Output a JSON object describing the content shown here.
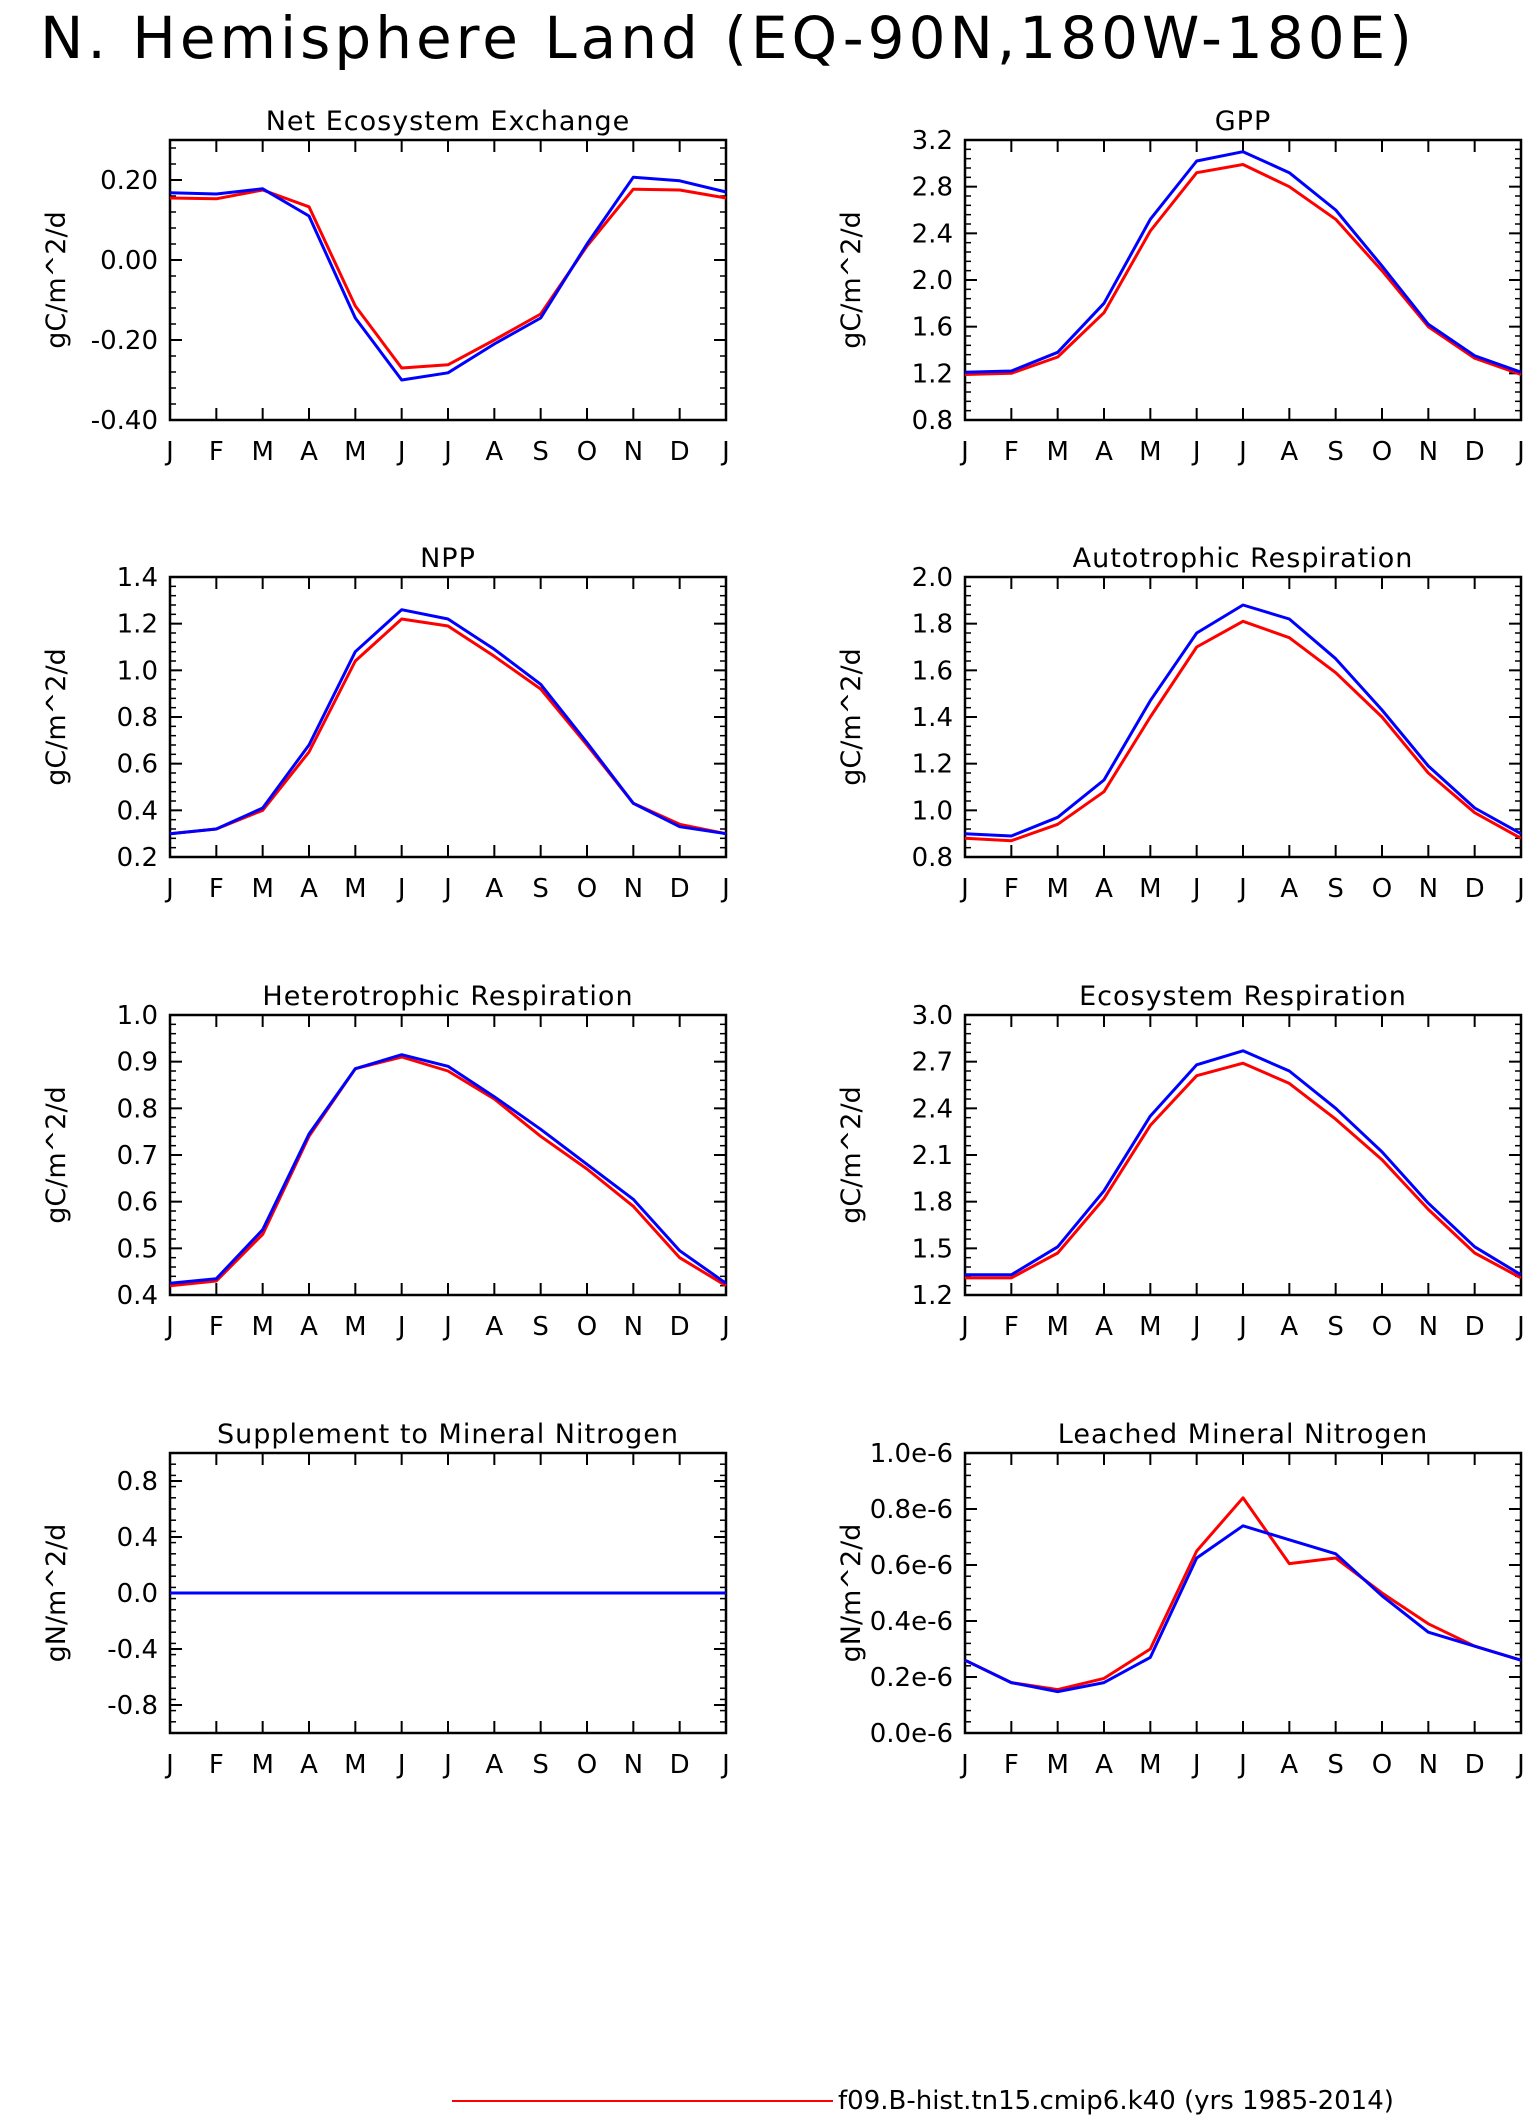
{
  "page": {
    "title": "N. Hemisphere Land (EQ-90N,180W-180E)"
  },
  "legend": {
    "label": "f09.B-hist.tn15.cmip6.k40 (yrs 1985-2014)",
    "color": "#ff0000"
  },
  "series_colors": {
    "red": "#ff0000",
    "blue": "#0000ff"
  },
  "chart_data": [
    {
      "type": "line",
      "title": "Net Ecosystem Exchange",
      "ylabel": "gC/m^2/d",
      "categories": [
        "J",
        "F",
        "M",
        "A",
        "M",
        "J",
        "J",
        "A",
        "S",
        "O",
        "N",
        "D",
        "J"
      ],
      "ylim": [
        -0.4,
        0.3
      ],
      "yticks": [
        -0.4,
        -0.2,
        0.0,
        0.2
      ],
      "ytick_labels": [
        "-0.40",
        "-0.20",
        "0.00",
        "0.20"
      ],
      "series": [
        {
          "color": "#ff0000",
          "values": [
            0.155,
            0.153,
            0.175,
            0.133,
            -0.115,
            -0.27,
            -0.262,
            -0.2,
            -0.135,
            0.035,
            0.177,
            0.175,
            0.155
          ]
        },
        {
          "color": "#0000ff",
          "values": [
            0.168,
            0.165,
            0.178,
            0.11,
            -0.145,
            -0.3,
            -0.282,
            -0.21,
            -0.145,
            0.04,
            0.207,
            0.198,
            0.17
          ]
        }
      ]
    },
    {
      "type": "line",
      "title": "GPP",
      "ylabel": "gC/m^2/d",
      "categories": [
        "J",
        "F",
        "M",
        "A",
        "M",
        "J",
        "J",
        "A",
        "S",
        "O",
        "N",
        "D",
        "J"
      ],
      "ylim": [
        0.8,
        3.2
      ],
      "yticks": [
        0.8,
        1.2,
        1.6,
        2.0,
        2.4,
        2.8,
        3.2
      ],
      "ytick_labels": [
        "0.8",
        "1.2",
        "1.6",
        "2.0",
        "2.4",
        "2.8",
        "3.2"
      ],
      "series": [
        {
          "color": "#ff0000",
          "values": [
            1.19,
            1.2,
            1.34,
            1.72,
            2.42,
            2.92,
            2.99,
            2.8,
            2.52,
            2.08,
            1.6,
            1.33,
            1.19
          ]
        },
        {
          "color": "#0000ff",
          "values": [
            1.21,
            1.22,
            1.38,
            1.8,
            2.52,
            3.02,
            3.1,
            2.92,
            2.6,
            2.12,
            1.62,
            1.35,
            1.21
          ]
        }
      ]
    },
    {
      "type": "line",
      "title": "NPP",
      "ylabel": "gC/m^2/d",
      "categories": [
        "J",
        "F",
        "M",
        "A",
        "M",
        "J",
        "J",
        "A",
        "S",
        "O",
        "N",
        "D",
        "J"
      ],
      "ylim": [
        0.2,
        1.4
      ],
      "yticks": [
        0.2,
        0.4,
        0.6,
        0.8,
        1.0,
        1.2,
        1.4
      ],
      "ytick_labels": [
        "0.2",
        "0.4",
        "0.6",
        "0.8",
        "1.0",
        "1.2",
        "1.4"
      ],
      "series": [
        {
          "color": "#ff0000",
          "values": [
            0.3,
            0.32,
            0.4,
            0.65,
            1.04,
            1.22,
            1.19,
            1.06,
            0.92,
            0.68,
            0.43,
            0.34,
            0.3
          ]
        },
        {
          "color": "#0000ff",
          "values": [
            0.3,
            0.32,
            0.41,
            0.68,
            1.08,
            1.26,
            1.22,
            1.09,
            0.94,
            0.69,
            0.43,
            0.33,
            0.3
          ]
        }
      ]
    },
    {
      "type": "line",
      "title": "Autotrophic Respiration",
      "ylabel": "gC/m^2/d",
      "categories": [
        "J",
        "F",
        "M",
        "A",
        "M",
        "J",
        "J",
        "A",
        "S",
        "O",
        "N",
        "D",
        "J"
      ],
      "ylim": [
        0.8,
        2.0
      ],
      "yticks": [
        0.8,
        1.0,
        1.2,
        1.4,
        1.6,
        1.8,
        2.0
      ],
      "ytick_labels": [
        "0.8",
        "1.0",
        "1.2",
        "1.4",
        "1.6",
        "1.8",
        "2.0"
      ],
      "series": [
        {
          "color": "#ff0000",
          "values": [
            0.88,
            0.87,
            0.94,
            1.08,
            1.4,
            1.7,
            1.81,
            1.74,
            1.59,
            1.4,
            1.16,
            0.99,
            0.88
          ]
        },
        {
          "color": "#0000ff",
          "values": [
            0.9,
            0.89,
            0.97,
            1.13,
            1.47,
            1.76,
            1.88,
            1.82,
            1.65,
            1.43,
            1.19,
            1.01,
            0.9
          ]
        }
      ]
    },
    {
      "type": "line",
      "title": "Heterotrophic Respiration",
      "ylabel": "gC/m^2/d",
      "categories": [
        "J",
        "F",
        "M",
        "A",
        "M",
        "J",
        "J",
        "A",
        "S",
        "O",
        "N",
        "D",
        "J"
      ],
      "ylim": [
        0.4,
        1.0
      ],
      "yticks": [
        0.4,
        0.5,
        0.6,
        0.7,
        0.8,
        0.9,
        1.0
      ],
      "ytick_labels": [
        "0.4",
        "0.5",
        "0.6",
        "0.7",
        "0.8",
        "0.9",
        "1.0"
      ],
      "series": [
        {
          "color": "#ff0000",
          "values": [
            0.42,
            0.43,
            0.53,
            0.74,
            0.885,
            0.91,
            0.88,
            0.82,
            0.74,
            0.67,
            0.59,
            0.48,
            0.42
          ]
        },
        {
          "color": "#0000ff",
          "values": [
            0.425,
            0.435,
            0.54,
            0.745,
            0.885,
            0.915,
            0.89,
            0.825,
            0.755,
            0.68,
            0.605,
            0.495,
            0.425
          ]
        }
      ]
    },
    {
      "type": "line",
      "title": "Ecosystem Respiration",
      "ylabel": "gC/m^2/d",
      "categories": [
        "J",
        "F",
        "M",
        "A",
        "M",
        "J",
        "J",
        "A",
        "S",
        "O",
        "N",
        "D",
        "J"
      ],
      "ylim": [
        1.2,
        3.0
      ],
      "yticks": [
        1.2,
        1.5,
        1.8,
        2.1,
        2.4,
        2.7,
        3.0
      ],
      "ytick_labels": [
        "1.2",
        "1.5",
        "1.8",
        "2.1",
        "2.4",
        "2.7",
        "3.0"
      ],
      "series": [
        {
          "color": "#ff0000",
          "values": [
            1.31,
            1.31,
            1.47,
            1.82,
            2.29,
            2.61,
            2.69,
            2.56,
            2.33,
            2.07,
            1.75,
            1.47,
            1.31
          ]
        },
        {
          "color": "#0000ff",
          "values": [
            1.33,
            1.33,
            1.51,
            1.87,
            2.35,
            2.68,
            2.77,
            2.64,
            2.4,
            2.12,
            1.79,
            1.51,
            1.33
          ]
        }
      ]
    },
    {
      "type": "line",
      "title": "Supplement to Mineral Nitrogen",
      "ylabel": "gN/m^2/d",
      "categories": [
        "J",
        "F",
        "M",
        "A",
        "M",
        "J",
        "J",
        "A",
        "S",
        "O",
        "N",
        "D",
        "J"
      ],
      "ylim": [
        -1.0,
        1.0
      ],
      "yticks": [
        -0.8,
        -0.4,
        0.0,
        0.4,
        0.8
      ],
      "ytick_labels": [
        "-0.8",
        "-0.4",
        "0.0",
        "0.4",
        "0.8"
      ],
      "series": [
        {
          "color": "#ff0000",
          "values": [
            0,
            0,
            0,
            0,
            0,
            0,
            0,
            0,
            0,
            0,
            0,
            0,
            0
          ]
        },
        {
          "color": "#0000ff",
          "values": [
            0,
            0,
            0,
            0,
            0,
            0,
            0,
            0,
            0,
            0,
            0,
            0,
            0
          ]
        }
      ]
    },
    {
      "type": "line",
      "title": "Leached Mineral Nitrogen",
      "ylabel": "gN/m^2/d",
      "categories": [
        "J",
        "F",
        "M",
        "A",
        "M",
        "J",
        "J",
        "A",
        "S",
        "O",
        "N",
        "D",
        "J"
      ],
      "ylim": [
        0.0,
        1.0
      ],
      "yticks": [
        0.0,
        0.2,
        0.4,
        0.6,
        0.8,
        1.0
      ],
      "ytick_labels": [
        "0.0e-6",
        "0.2e-6",
        "0.4e-6",
        "0.6e-6",
        "0.8e-6",
        "1.0e-6"
      ],
      "y_multiplier": "1e-6",
      "series": [
        {
          "color": "#ff0000",
          "values": [
            0.26,
            0.18,
            0.155,
            0.195,
            0.3,
            0.65,
            0.84,
            0.605,
            0.625,
            0.5,
            0.39,
            0.31,
            0.26
          ]
        },
        {
          "color": "#0000ff",
          "values": [
            0.26,
            0.18,
            0.148,
            0.18,
            0.27,
            0.625,
            0.74,
            0.69,
            0.64,
            0.49,
            0.36,
            0.31,
            0.26
          ]
        }
      ]
    }
  ]
}
